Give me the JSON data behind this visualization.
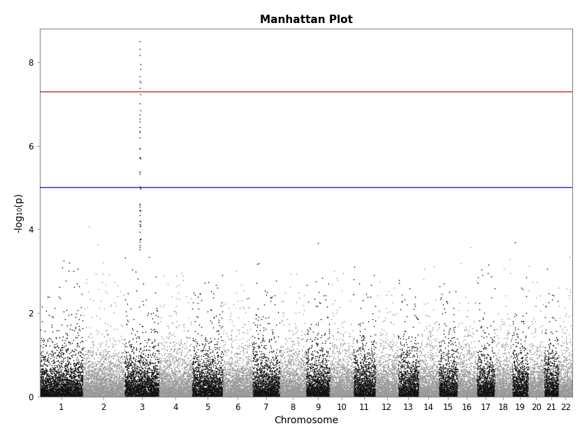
{
  "title": "Manhattan Plot",
  "xlabel": "Chromosome",
  "ylabel": "-log₁₀(p)",
  "ylim": [
    0,
    8.8
  ],
  "yticks": [
    0,
    2,
    4,
    6,
    8
  ],
  "gwas_threshold": 7.3,
  "suggestive_threshold": 5.0,
  "gwas_line_color": "#cc2222",
  "suggestive_line_color": "#2222cc",
  "chrom_colors": [
    "#111111",
    "#999999"
  ],
  "n_chromosomes": 22,
  "chrom_sizes": [
    2500,
    2400,
    2000,
    1900,
    1800,
    1700,
    1600,
    1500,
    1400,
    1350,
    1300,
    1300,
    1200,
    1150,
    1100,
    1100,
    1050,
    1000,
    950,
    900,
    850,
    800
  ],
  "seed": 42,
  "spike_chrom": 3,
  "spike_n_points": 50,
  "spike_max": 8.5,
  "background_color": "white",
  "figure_facecolor": "none",
  "point_size": 1.5,
  "point_alpha": 0.9,
  "title_fontsize": 11,
  "axis_label_fontsize": 10,
  "tick_fontsize": 8.5
}
